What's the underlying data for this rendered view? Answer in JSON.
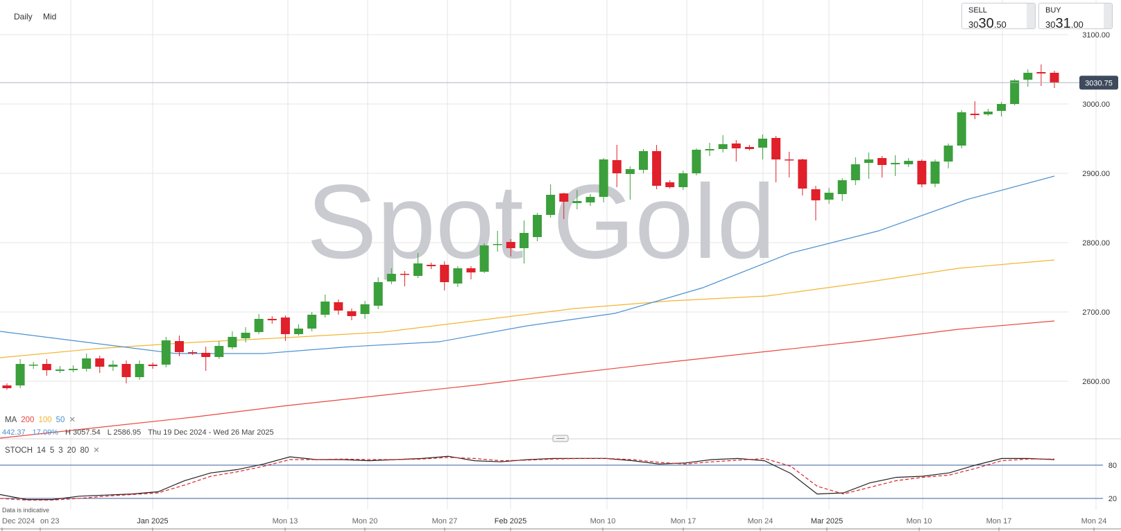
{
  "toolbar": {
    "timeframe": "Daily",
    "price_type": "Mid"
  },
  "quotes": {
    "sell": {
      "label": "SELL",
      "prefix": "30",
      "big": "30",
      "suffix": ".50"
    },
    "buy": {
      "label": "BUY",
      "prefix": "30",
      "big": "31",
      "suffix": ".00"
    }
  },
  "watermark": "Spot Gold",
  "current_price_label": "3030.75",
  "ma_legend": {
    "label": "MA",
    "p1": "200",
    "p2": "100",
    "p3": "50"
  },
  "stats": {
    "change": "442.37",
    "pct": "17.09%",
    "high": "H 3057.54",
    "low": "L 2586.95",
    "range": "Thu 19 Dec 2024 - Wed 26 Mar 2025"
  },
  "stoch_legend": {
    "label": "STOCH",
    "k": "14",
    "d": "5",
    "smooth": "3",
    "low": "20",
    "high": "80"
  },
  "indicative": "Data is indicative",
  "colors": {
    "up": "#3b9f3b",
    "down": "#e0202a",
    "ma200": "#e8473f",
    "ma100": "#f2b531",
    "ma50": "#4a90d0",
    "price_tag": "#3e4a5c",
    "stoch_k": "#222222",
    "stoch_d": "#e0202a",
    "stoch_band": "#3a5d9c"
  },
  "chart_data": [
    {
      "type": "candlestick",
      "title": "Spot Gold",
      "ylim": [
        2520,
        3120
      ],
      "yticks": [
        "2600.00",
        "2700.00",
        "2800.00",
        "2900.00",
        "3000.00",
        "3100.00"
      ],
      "xticks": [
        "Dec 2024",
        "on 23",
        "Jan 2025",
        "Mon 13",
        "Mon 20",
        "Mon 27",
        "Feb 2025",
        "Mon 10",
        "Mon 17",
        "Mon 24",
        "Mar 2025",
        "Mon 10",
        "Mon 17",
        "Mon 24"
      ],
      "current_price": 3030.75,
      "candles": [
        {
          "o": 2594,
          "c": 2590,
          "h": 2597,
          "l": 2588
        },
        {
          "o": 2594,
          "c": 2625,
          "h": 2632,
          "l": 2590
        },
        {
          "o": 2623,
          "c": 2624,
          "h": 2628,
          "l": 2618
        },
        {
          "o": 2625,
          "c": 2616,
          "h": 2632,
          "l": 2608
        },
        {
          "o": 2615,
          "c": 2617,
          "h": 2622,
          "l": 2612
        },
        {
          "o": 2616,
          "c": 2618,
          "h": 2623,
          "l": 2613
        },
        {
          "o": 2618,
          "c": 2633,
          "h": 2640,
          "l": 2614
        },
        {
          "o": 2633,
          "c": 2621,
          "h": 2637,
          "l": 2612
        },
        {
          "o": 2621,
          "c": 2624,
          "h": 2630,
          "l": 2615
        },
        {
          "o": 2625,
          "c": 2606,
          "h": 2630,
          "l": 2597
        },
        {
          "o": 2606,
          "c": 2625,
          "h": 2630,
          "l": 2602
        },
        {
          "o": 2624,
          "c": 2622,
          "h": 2627,
          "l": 2618
        },
        {
          "o": 2624,
          "c": 2659,
          "h": 2664,
          "l": 2620
        },
        {
          "o": 2658,
          "c": 2642,
          "h": 2666,
          "l": 2636
        },
        {
          "o": 2642,
          "c": 2641,
          "h": 2645,
          "l": 2638
        },
        {
          "o": 2641,
          "c": 2635,
          "h": 2650,
          "l": 2615
        },
        {
          "o": 2635,
          "c": 2651,
          "h": 2658,
          "l": 2632
        },
        {
          "o": 2649,
          "c": 2664,
          "h": 2672,
          "l": 2646
        },
        {
          "o": 2662,
          "c": 2670,
          "h": 2678,
          "l": 2656
        },
        {
          "o": 2671,
          "c": 2690,
          "h": 2697,
          "l": 2668
        },
        {
          "o": 2690,
          "c": 2688,
          "h": 2694,
          "l": 2683
        },
        {
          "o": 2692,
          "c": 2668,
          "h": 2695,
          "l": 2658
        },
        {
          "o": 2668,
          "c": 2676,
          "h": 2682,
          "l": 2666
        },
        {
          "o": 2676,
          "c": 2696,
          "h": 2700,
          "l": 2672
        },
        {
          "o": 2696,
          "c": 2715,
          "h": 2725,
          "l": 2692
        },
        {
          "o": 2714,
          "c": 2702,
          "h": 2718,
          "l": 2696
        },
        {
          "o": 2701,
          "c": 2694,
          "h": 2705,
          "l": 2688
        },
        {
          "o": 2697,
          "c": 2711,
          "h": 2716,
          "l": 2690
        },
        {
          "o": 2709,
          "c": 2743,
          "h": 2750,
          "l": 2704
        },
        {
          "o": 2744,
          "c": 2755,
          "h": 2763,
          "l": 2740
        },
        {
          "o": 2755,
          "c": 2754,
          "h": 2759,
          "l": 2737
        },
        {
          "o": 2752,
          "c": 2770,
          "h": 2785,
          "l": 2749
        },
        {
          "o": 2768,
          "c": 2766,
          "h": 2771,
          "l": 2762
        },
        {
          "o": 2768,
          "c": 2743,
          "h": 2773,
          "l": 2731
        },
        {
          "o": 2741,
          "c": 2763,
          "h": 2766,
          "l": 2736
        },
        {
          "o": 2763,
          "c": 2757,
          "h": 2766,
          "l": 2747
        },
        {
          "o": 2758,
          "c": 2796,
          "h": 2799,
          "l": 2756
        },
        {
          "o": 2797,
          "c": 2798,
          "h": 2817,
          "l": 2787
        },
        {
          "o": 2801,
          "c": 2792,
          "h": 2805,
          "l": 2780
        },
        {
          "o": 2792,
          "c": 2814,
          "h": 2832,
          "l": 2770
        },
        {
          "o": 2808,
          "c": 2840,
          "h": 2843,
          "l": 2802
        },
        {
          "o": 2840,
          "c": 2869,
          "h": 2884,
          "l": 2836
        },
        {
          "o": 2871,
          "c": 2859,
          "h": 2872,
          "l": 2834
        },
        {
          "o": 2857,
          "c": 2860,
          "h": 2876,
          "l": 2848
        },
        {
          "o": 2858,
          "c": 2866,
          "h": 2870,
          "l": 2853
        },
        {
          "o": 2866,
          "c": 2920,
          "h": 2922,
          "l": 2858
        },
        {
          "o": 2919,
          "c": 2900,
          "h": 2941,
          "l": 2880
        },
        {
          "o": 2899,
          "c": 2906,
          "h": 2910,
          "l": 2862
        },
        {
          "o": 2905,
          "c": 2932,
          "h": 2935,
          "l": 2900
        },
        {
          "o": 2932,
          "c": 2882,
          "h": 2941,
          "l": 2877
        },
        {
          "o": 2887,
          "c": 2880,
          "h": 2890,
          "l": 2878
        },
        {
          "o": 2880,
          "c": 2900,
          "h": 2904,
          "l": 2876
        },
        {
          "o": 2900,
          "c": 2934,
          "h": 2936,
          "l": 2897
        },
        {
          "o": 2933,
          "c": 2935,
          "h": 2944,
          "l": 2925
        },
        {
          "o": 2935,
          "c": 2942,
          "h": 2955,
          "l": 2930
        },
        {
          "o": 2943,
          "c": 2936,
          "h": 2948,
          "l": 2917
        },
        {
          "o": 2938,
          "c": 2935,
          "h": 2941,
          "l": 2933
        },
        {
          "o": 2937,
          "c": 2950,
          "h": 2956,
          "l": 2920
        },
        {
          "o": 2951,
          "c": 2920,
          "h": 2954,
          "l": 2887
        },
        {
          "o": 2920,
          "c": 2919,
          "h": 2931,
          "l": 2894
        },
        {
          "o": 2920,
          "c": 2878,
          "h": 2921,
          "l": 2868
        },
        {
          "o": 2877,
          "c": 2861,
          "h": 2882,
          "l": 2832
        },
        {
          "o": 2862,
          "c": 2872,
          "h": 2879,
          "l": 2856
        },
        {
          "o": 2870,
          "c": 2890,
          "h": 2893,
          "l": 2860
        },
        {
          "o": 2890,
          "c": 2913,
          "h": 2923,
          "l": 2883
        },
        {
          "o": 2915,
          "c": 2920,
          "h": 2930,
          "l": 2892
        },
        {
          "o": 2922,
          "c": 2912,
          "h": 2925,
          "l": 2894
        },
        {
          "o": 2913,
          "c": 2915,
          "h": 2926,
          "l": 2896
        },
        {
          "o": 2913,
          "c": 2918,
          "h": 2922,
          "l": 2909
        },
        {
          "o": 2918,
          "c": 2884,
          "h": 2920,
          "l": 2880
        },
        {
          "o": 2885,
          "c": 2917,
          "h": 2920,
          "l": 2880
        },
        {
          "o": 2917,
          "c": 2940,
          "h": 2943,
          "l": 2907
        },
        {
          "o": 2940,
          "c": 2988,
          "h": 2991,
          "l": 2936
        },
        {
          "o": 2986,
          "c": 2984,
          "h": 3004,
          "l": 2978
        },
        {
          "o": 2985,
          "c": 2989,
          "h": 2993,
          "l": 2983
        },
        {
          "o": 2990,
          "c": 3000,
          "h": 3003,
          "l": 2982
        },
        {
          "o": 3000,
          "c": 3034,
          "h": 3036,
          "l": 2998
        },
        {
          "o": 3035,
          "c": 3045,
          "h": 3050,
          "l": 3025
        },
        {
          "o": 3046,
          "c": 3044,
          "h": 3057,
          "l": 3026
        },
        {
          "o": 3045,
          "c": 3031,
          "h": 3048,
          "l": 3023
        }
      ],
      "ma": [
        {
          "name": "200",
          "values": [
            2518,
            2533,
            2548,
            2565,
            2580,
            2595,
            2612,
            2628,
            2643,
            2658,
            2675,
            2687
          ]
        },
        {
          "name": "100",
          "values": [
            2634,
            2647,
            2656,
            2663,
            2671,
            2688,
            2705,
            2716,
            2723,
            2742,
            2763,
            2775
          ]
        },
        {
          "name": "50",
          "values": [
            2672,
            2656,
            2640,
            2640,
            2650,
            2657,
            2680,
            2698,
            2735,
            2785,
            2817,
            2862,
            2896
          ]
        }
      ]
    },
    {
      "type": "line",
      "title": "STOCH 14 5 3 20 80",
      "ylim": [
        0,
        100
      ],
      "yticks": [
        "20",
        "80"
      ],
      "series": [
        {
          "name": "k",
          "values": [
            27,
            18,
            18,
            24,
            26,
            28,
            32,
            52,
            66,
            72,
            82,
            95,
            90,
            90,
            88,
            90,
            92,
            96,
            88,
            86,
            90,
            92,
            92,
            92,
            88,
            82,
            84,
            90,
            92,
            88,
            65,
            28,
            30,
            48,
            58,
            60,
            66,
            80,
            92,
            92,
            90
          ]
        },
        {
          "name": "d",
          "values": [
            20,
            17,
            17,
            20,
            24,
            27,
            30,
            44,
            60,
            68,
            78,
            90,
            90,
            91,
            90,
            90,
            91,
            94,
            92,
            88,
            89,
            91,
            92,
            92,
            90,
            85,
            82,
            86,
            89,
            92,
            78,
            42,
            28,
            40,
            52,
            58,
            62,
            74,
            88,
            91,
            91
          ]
        }
      ]
    }
  ]
}
